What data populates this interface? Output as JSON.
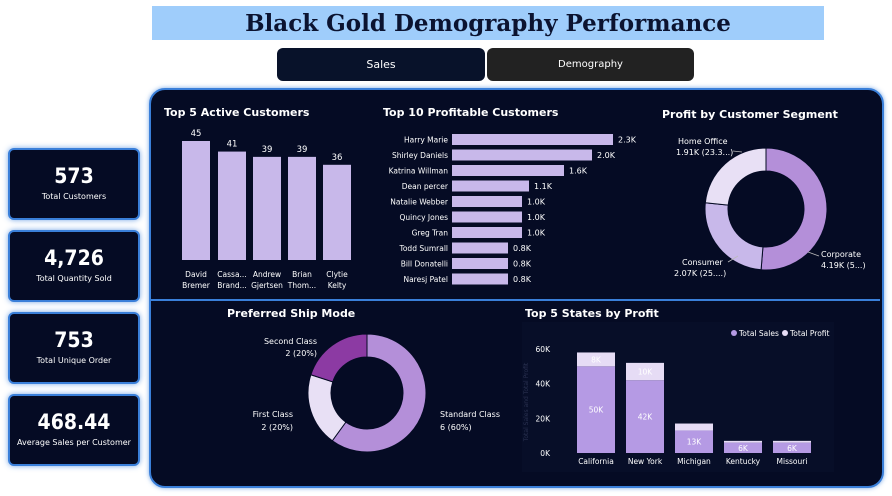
{
  "header": {
    "title": "Black Gold Demography Performance"
  },
  "nav": {
    "sales_label": "Sales",
    "demography_label": "Demography"
  },
  "kpis": [
    {
      "value": "573",
      "label": "Total Customers"
    },
    {
      "value": "4,726",
      "label": "Total Quantity Sold"
    },
    {
      "value": "753",
      "label": "Total Unique Order"
    },
    {
      "value": "468.44",
      "label": "Average Sales per Customer"
    }
  ],
  "colors": {
    "bar": "#c8b8ea",
    "dark_purple": "#8c3aa3",
    "mid_purple": "#b48fd9",
    "light_purple": "#e8e0f5",
    "bar_violet": "#b59ae4",
    "bar_light": "#e6dcf5"
  },
  "chart_data": [
    {
      "type": "bar",
      "title": "Top 5 Active Customers",
      "categories": [
        "David Bremer",
        "Cassa... Brand...",
        "Andrew Gjertsen",
        "Brian Thom...",
        "Clytie Kelty"
      ],
      "category_lines": [
        [
          "David",
          "Bremer"
        ],
        [
          "Cassa...",
          "Brand..."
        ],
        [
          "Andrew",
          "Gjertsen"
        ],
        [
          "Brian",
          "Thom..."
        ],
        [
          "Clytie",
          "Kelty"
        ]
      ],
      "values": [
        45,
        41,
        39,
        39,
        36
      ],
      "data_labels": [
        "45",
        "41",
        "39",
        "39",
        "36"
      ],
      "ylim": [
        0,
        45
      ]
    },
    {
      "type": "bar",
      "orientation": "horizontal",
      "title": "Top 10 Profitable Customers",
      "categories": [
        "Harry Marie",
        "Shirley Daniels",
        "Katrina Willman",
        "Dean percer",
        "Natalie Webber",
        "Quincy Jones",
        "Greg Tran",
        "Todd Sumrall",
        "Bill Donatelli",
        "Naresj Patel"
      ],
      "values": [
        2300,
        2000,
        1600,
        1100,
        1000,
        1000,
        1000,
        800,
        800,
        800
      ],
      "data_labels": [
        "2.3K",
        "2.0K",
        "1.6K",
        "1.1K",
        "1.0K",
        "1.0K",
        "1.0K",
        "0.8K",
        "0.8K",
        "0.8K"
      ],
      "xlim": [
        0,
        2300
      ]
    },
    {
      "type": "pie",
      "donut": true,
      "title": "Profit by Customer Segment",
      "categories": [
        "Corporate",
        "Consumer",
        "Home Office"
      ],
      "values": [
        4190,
        2070,
        1910
      ],
      "data_labels": [
        [
          "Corporate",
          "4.19K (5...)"
        ],
        [
          "Consumer",
          "2.07K (25....)"
        ],
        [
          "Home Office",
          "1.91K (23.3...)"
        ]
      ]
    },
    {
      "type": "pie",
      "donut": true,
      "title": "Preferred Ship Mode",
      "categories": [
        "Standard Class",
        "First Class",
        "Second Class"
      ],
      "values": [
        6,
        2,
        2
      ],
      "data_labels": [
        [
          "Standard Class",
          "6 (60%)"
        ],
        [
          "First Class",
          "2 (20%)"
        ],
        [
          "Second Class",
          "2 (20%)"
        ]
      ]
    },
    {
      "type": "bar",
      "stacked": true,
      "title": "Top 5 States by Profit",
      "categories": [
        "California",
        "New York",
        "Michigan",
        "Kentucky",
        "Missouri"
      ],
      "series": [
        {
          "name": "Total Sales",
          "values": [
            50000,
            42000,
            13000,
            6000,
            6000
          ],
          "labels": [
            "50K",
            "42K",
            "13K",
            "6K",
            "6K"
          ]
        },
        {
          "name": "Total Profit",
          "values": [
            8000,
            10000,
            4000,
            1000,
            1000
          ],
          "labels": [
            "8K",
            "10K",
            "",
            "",
            ""
          ]
        }
      ],
      "yticks": [
        "0K",
        "20K",
        "40K",
        "60K"
      ],
      "ylim": [
        0,
        60000
      ],
      "ylabel": "Total Sales and Total Profit"
    }
  ]
}
